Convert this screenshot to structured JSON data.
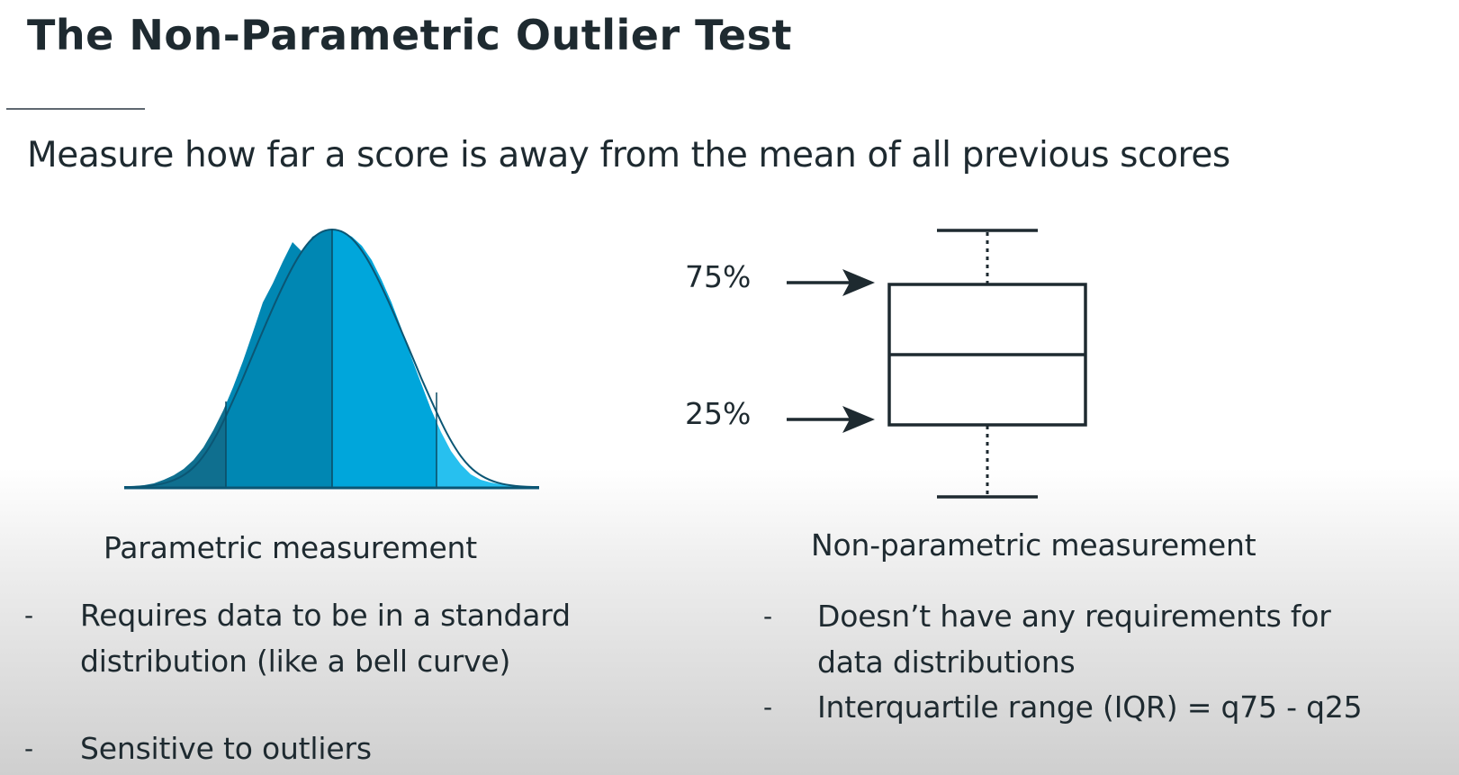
{
  "slide": {
    "title": "The Non-Parametric Outlier Test",
    "subtitle": "Measure how far a score is away from the mean of all previous scores"
  },
  "parametric": {
    "caption": "Parametric measurement",
    "bullets": [
      {
        "marker": "-",
        "lines": [
          "Requires data to be in a standard",
          "distribution (like a bell curve)"
        ]
      },
      {
        "marker": "-",
        "lines": [
          "Sensitive to outliers"
        ]
      }
    ],
    "curve_colors": [
      "#0f6f8f",
      "#0087b3",
      "#00a6db",
      "#27c0ef"
    ]
  },
  "nonparametric": {
    "caption": "Non-parametric measurement",
    "labels": {
      "upper": "75%",
      "lower": "25%"
    },
    "bullets": [
      {
        "marker": "-",
        "lines": [
          "Doesn’t have any requirements for",
          "data distributions"
        ]
      },
      {
        "marker": "-",
        "lines": [
          "Interquartile range (IQR) = q75 - q25"
        ]
      }
    ],
    "box_color": "#1e2a30"
  }
}
